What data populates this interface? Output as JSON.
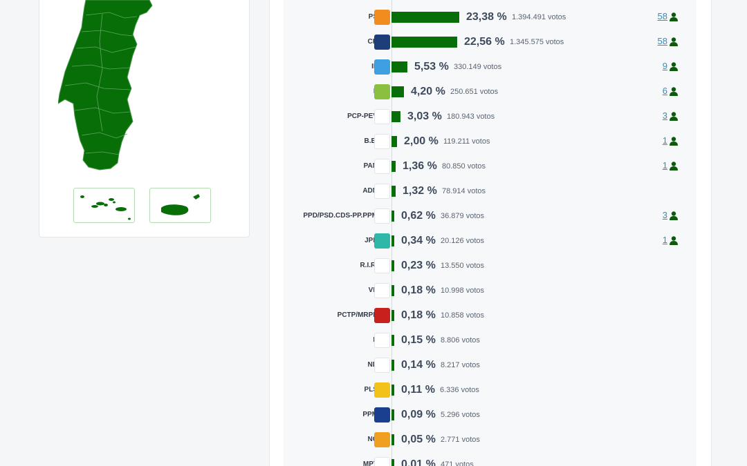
{
  "results": [
    {
      "abbr": "PS",
      "pct": "23,38 %",
      "votes": "1.394.491 votos",
      "seats": "58",
      "fraction": 0.2338,
      "logo_color": "#f28c1e",
      "logo_icon": "ps-logo-icon"
    },
    {
      "abbr": "CH",
      "pct": "22,56 %",
      "votes": "1.345.575 votos",
      "seats": "58",
      "fraction": 0.2256,
      "logo_color": "#1c3f7a",
      "logo_icon": "chega-logo-icon"
    },
    {
      "abbr": "IL",
      "pct": "5,53 %",
      "votes": "330.149 votos",
      "seats": "9",
      "fraction": 0.0553,
      "logo_color": "#3ea0e0",
      "logo_icon": "il-logo-icon"
    },
    {
      "abbr": "L",
      "pct": "4,20 %",
      "votes": "250.651 votos",
      "seats": "6",
      "fraction": 0.042,
      "logo_color": "#8bbf3f",
      "logo_icon": "livre-logo-icon"
    },
    {
      "abbr": "PCP-PEV",
      "pct": "3,03 %",
      "votes": "180.943 votos",
      "seats": "3",
      "fraction": 0.0303,
      "logo_color": "#ffffff",
      "logo_icon": "cdu-logo-icon"
    },
    {
      "abbr": "B.E.",
      "pct": "2,00 %",
      "votes": "119.211 votos",
      "seats": "1",
      "fraction": 0.02,
      "logo_color": "#ffffff",
      "logo_icon": "be-star-icon"
    },
    {
      "abbr": "PAN",
      "pct": "1,36 %",
      "votes": "80.850 votos",
      "seats": "1",
      "fraction": 0.0136,
      "logo_color": "#ffffff",
      "logo_icon": "pan-tree-icon"
    },
    {
      "abbr": "ADN",
      "pct": "1,32 %",
      "votes": "78.914 votos",
      "seats": "",
      "fraction": 0.0132,
      "logo_color": "#ffffff",
      "logo_icon": "adn-logo-icon"
    },
    {
      "abbr": "PPD/PSD.CDS-PP.PPM",
      "pct": "0,62 %",
      "votes": "36.879 votos",
      "seats": "3",
      "fraction": 0.0062,
      "logo_color": "#ffffff",
      "logo_icon": "ad-logo-icon"
    },
    {
      "abbr": "JPP",
      "pct": "0,34 %",
      "votes": "20.126 votos",
      "seats": "1",
      "fraction": 0.0034,
      "logo_color": "#2fb7a8",
      "logo_icon": "jpp-logo-icon"
    },
    {
      "abbr": "R.I.R.",
      "pct": "0,23 %",
      "votes": "13.550 votos",
      "seats": "",
      "fraction": 0.0023,
      "logo_color": "#ffffff",
      "logo_icon": "rir-logo-icon"
    },
    {
      "abbr": "VP",
      "pct": "0,18 %",
      "votes": "10.998 votos",
      "seats": "",
      "fraction": 0.0018,
      "logo_color": "#ffffff",
      "logo_icon": "volt-logo-icon"
    },
    {
      "abbr": "PCTP/MRPP",
      "pct": "0,18 %",
      "votes": "10.858 votos",
      "seats": "",
      "fraction": 0.0018,
      "logo_color": "#c8201c",
      "logo_icon": "mrpp-logo-icon"
    },
    {
      "abbr": "E",
      "pct": "0,15 %",
      "votes": "8.806 votos",
      "seats": "",
      "fraction": 0.0015,
      "logo_color": "#ffffff",
      "logo_icon": "ergue-te-logo-icon"
    },
    {
      "abbr": "ND",
      "pct": "0,14 %",
      "votes": "8.217 votos",
      "seats": "",
      "fraction": 0.0014,
      "logo_color": "#ffffff",
      "logo_icon": "nova-direita-logo-icon"
    },
    {
      "abbr": "PLS",
      "pct": "0,11 %",
      "votes": "6.336 votos",
      "seats": "",
      "fraction": 0.0011,
      "logo_color": "#f2c21a",
      "logo_icon": "pls-logo-icon"
    },
    {
      "abbr": "PPM",
      "pct": "0,09 %",
      "votes": "5.296 votos",
      "seats": "",
      "fraction": 0.0009,
      "logo_color": "#1b3f8f",
      "logo_icon": "ppm-logo-icon"
    },
    {
      "abbr": "NC",
      "pct": "0,05 %",
      "votes": "2.771 votos",
      "seats": "",
      "fraction": 0.0005,
      "logo_color": "#f0a020",
      "logo_icon": "nos-cidadaos-logo-icon"
    },
    {
      "abbr": "MPT",
      "pct": "0,01 %",
      "votes": "471 votos",
      "seats": "",
      "fraction": 0.0001,
      "logo_color": "#ffffff",
      "logo_icon": "clover-logo-icon"
    }
  ],
  "colors": {
    "bar": "#076e08",
    "map_fill": "#076e08",
    "seats_link": "#2d8fbf",
    "seat_icon": "#0a5c0c"
  },
  "icons": {
    "seat": "person-icon",
    "map": "portugal-map-icon",
    "azores": "azores-map-icon",
    "madeira": "madeira-map-icon"
  }
}
